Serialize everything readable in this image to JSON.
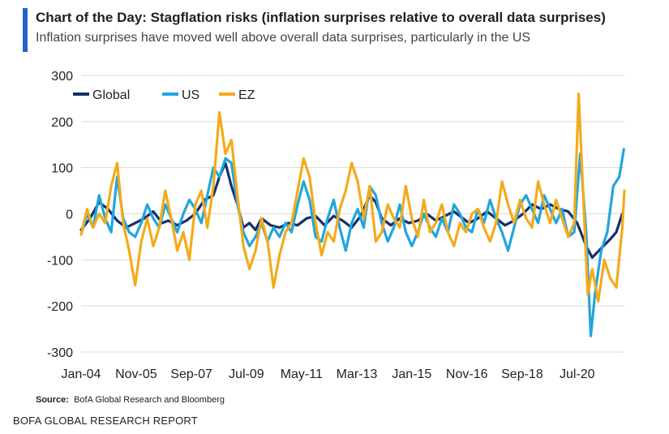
{
  "header": {
    "title": "Chart of the Day: Stagflation risks (inflation surprises relative to overall data surprises)",
    "subtitle": "Inflation surprises have moved well above overall data surprises, particularly in the US"
  },
  "footer": {
    "source_label": "Source:",
    "source_text": "BofA Global Research and Bloomberg",
    "report_label": "BOFA GLOBAL RESEARCH REPORT"
  },
  "colors": {
    "accent": "#2563c8",
    "global": "#14306e",
    "us": "#21a6dc",
    "ez": "#f3ab1b",
    "grid": "#d9d9d9"
  },
  "chart_data": {
    "type": "line",
    "title": "Chart of the Day: Stagflation risks (inflation surprises relative to overall data surprises)",
    "xlabel": "",
    "ylabel": "",
    "ylim": [
      -300,
      300
    ],
    "yticks": [
      300,
      200,
      100,
      0,
      -100,
      -200,
      -300
    ],
    "xlim": [
      2004.0,
      2022.07
    ],
    "xticks": [
      {
        "label": "Jan-04",
        "x": 2004.0
      },
      {
        "label": "Nov-05",
        "x": 2005.83
      },
      {
        "label": "Sep-07",
        "x": 2007.67
      },
      {
        "label": "Jul-09",
        "x": 2009.5
      },
      {
        "label": "May-11",
        "x": 2011.33
      },
      {
        "label": "Mar-13",
        "x": 2013.17
      },
      {
        "label": "Jan-15",
        "x": 2015.0
      },
      {
        "label": "Nov-16",
        "x": 2016.83
      },
      {
        "label": "Sep-18",
        "x": 2018.67
      },
      {
        "label": "Jul-20",
        "x": 2020.5
      }
    ],
    "legend_position": "top-left",
    "grid": "horizontal",
    "series": [
      {
        "name": "Global",
        "color": "#14306e",
        "points": [
          [
            2004.0,
            -35
          ],
          [
            2004.3,
            -10
          ],
          [
            2004.6,
            25
          ],
          [
            2004.9,
            10
          ],
          [
            2005.2,
            -15
          ],
          [
            2005.5,
            -30
          ],
          [
            2005.8,
            -20
          ],
          [
            2006.1,
            -10
          ],
          [
            2006.4,
            5
          ],
          [
            2006.7,
            -20
          ],
          [
            2006.9,
            -15
          ],
          [
            2007.2,
            -25
          ],
          [
            2007.5,
            -15
          ],
          [
            2007.8,
            0
          ],
          [
            2008.1,
            30
          ],
          [
            2008.4,
            40
          ],
          [
            2008.6,
            80
          ],
          [
            2008.8,
            110
          ],
          [
            2009.0,
            60
          ],
          [
            2009.2,
            20
          ],
          [
            2009.4,
            -30
          ],
          [
            2009.6,
            -20
          ],
          [
            2009.8,
            -35
          ],
          [
            2010.0,
            -10
          ],
          [
            2010.3,
            -25
          ],
          [
            2010.6,
            -30
          ],
          [
            2010.9,
            -20
          ],
          [
            2011.2,
            -25
          ],
          [
            2011.5,
            -10
          ],
          [
            2011.8,
            -5
          ],
          [
            2012.1,
            -25
          ],
          [
            2012.4,
            -5
          ],
          [
            2012.7,
            -15
          ],
          [
            2013.0,
            -30
          ],
          [
            2013.3,
            -5
          ],
          [
            2013.6,
            40
          ],
          [
            2013.8,
            25
          ],
          [
            2014.0,
            -10
          ],
          [
            2014.3,
            -25
          ],
          [
            2014.6,
            -10
          ],
          [
            2014.9,
            -20
          ],
          [
            2015.2,
            -15
          ],
          [
            2015.5,
            0
          ],
          [
            2015.8,
            -15
          ],
          [
            2016.1,
            -5
          ],
          [
            2016.4,
            5
          ],
          [
            2016.7,
            -10
          ],
          [
            2016.9,
            -20
          ],
          [
            2017.2,
            -10
          ],
          [
            2017.5,
            5
          ],
          [
            2017.8,
            -10
          ],
          [
            2018.1,
            -25
          ],
          [
            2018.4,
            -15
          ],
          [
            2018.7,
            0
          ],
          [
            2019.0,
            20
          ],
          [
            2019.3,
            10
          ],
          [
            2019.6,
            20
          ],
          [
            2019.9,
            10
          ],
          [
            2020.2,
            5
          ],
          [
            2020.5,
            -20
          ],
          [
            2020.8,
            -70
          ],
          [
            2021.0,
            -95
          ],
          [
            2021.3,
            -75
          ],
          [
            2021.6,
            -55
          ],
          [
            2021.8,
            -40
          ],
          [
            2022.0,
            0
          ]
        ]
      },
      {
        "name": "US",
        "color": "#21a6dc",
        "points": [
          [
            2004.0,
            -45
          ],
          [
            2004.2,
            0
          ],
          [
            2004.4,
            -30
          ],
          [
            2004.6,
            40
          ],
          [
            2004.8,
            -10
          ],
          [
            2005.0,
            -40
          ],
          [
            2005.2,
            80
          ],
          [
            2005.4,
            -10
          ],
          [
            2005.6,
            -40
          ],
          [
            2005.8,
            -50
          ],
          [
            2006.0,
            -20
          ],
          [
            2006.2,
            20
          ],
          [
            2006.4,
            -10
          ],
          [
            2006.6,
            -30
          ],
          [
            2006.8,
            20
          ],
          [
            2007.0,
            -10
          ],
          [
            2007.2,
            -40
          ],
          [
            2007.4,
            0
          ],
          [
            2007.6,
            30
          ],
          [
            2007.8,
            10
          ],
          [
            2008.0,
            -20
          ],
          [
            2008.2,
            40
          ],
          [
            2008.4,
            100
          ],
          [
            2008.6,
            80
          ],
          [
            2008.8,
            120
          ],
          [
            2009.0,
            110
          ],
          [
            2009.2,
            20
          ],
          [
            2009.4,
            -40
          ],
          [
            2009.6,
            -70
          ],
          [
            2009.8,
            -50
          ],
          [
            2010.0,
            -20
          ],
          [
            2010.2,
            -60
          ],
          [
            2010.4,
            -30
          ],
          [
            2010.6,
            -50
          ],
          [
            2010.8,
            -20
          ],
          [
            2011.0,
            -40
          ],
          [
            2011.2,
            20
          ],
          [
            2011.4,
            70
          ],
          [
            2011.6,
            30
          ],
          [
            2011.8,
            -50
          ],
          [
            2012.0,
            -60
          ],
          [
            2012.2,
            -10
          ],
          [
            2012.4,
            30
          ],
          [
            2012.6,
            -30
          ],
          [
            2012.8,
            -80
          ],
          [
            2013.0,
            -20
          ],
          [
            2013.2,
            10
          ],
          [
            2013.4,
            -30
          ],
          [
            2013.6,
            60
          ],
          [
            2013.8,
            40
          ],
          [
            2014.0,
            -20
          ],
          [
            2014.2,
            -60
          ],
          [
            2014.4,
            -30
          ],
          [
            2014.6,
            20
          ],
          [
            2014.8,
            -40
          ],
          [
            2015.0,
            -70
          ],
          [
            2015.2,
            -40
          ],
          [
            2015.4,
            0
          ],
          [
            2015.6,
            -30
          ],
          [
            2015.8,
            -50
          ],
          [
            2016.0,
            -10
          ],
          [
            2016.2,
            -40
          ],
          [
            2016.4,
            20
          ],
          [
            2016.6,
            0
          ],
          [
            2016.8,
            -30
          ],
          [
            2017.0,
            -40
          ],
          [
            2017.2,
            10
          ],
          [
            2017.4,
            -20
          ],
          [
            2017.6,
            30
          ],
          [
            2017.8,
            -10
          ],
          [
            2018.0,
            -40
          ],
          [
            2018.2,
            -80
          ],
          [
            2018.4,
            -30
          ],
          [
            2018.6,
            20
          ],
          [
            2018.8,
            40
          ],
          [
            2019.0,
            10
          ],
          [
            2019.2,
            -20
          ],
          [
            2019.4,
            40
          ],
          [
            2019.6,
            10
          ],
          [
            2019.8,
            -20
          ],
          [
            2020.0,
            10
          ],
          [
            2020.2,
            -50
          ],
          [
            2020.4,
            -40
          ],
          [
            2020.6,
            130
          ],
          [
            2020.8,
            -40
          ],
          [
            2020.95,
            -265
          ],
          [
            2021.1,
            -170
          ],
          [
            2021.3,
            -80
          ],
          [
            2021.5,
            -40
          ],
          [
            2021.7,
            60
          ],
          [
            2021.9,
            80
          ],
          [
            2022.05,
            140
          ]
        ]
      },
      {
        "name": "EZ",
        "color": "#f3ab1b",
        "points": [
          [
            2004.0,
            -45
          ],
          [
            2004.2,
            10
          ],
          [
            2004.4,
            -30
          ],
          [
            2004.6,
            0
          ],
          [
            2004.8,
            -20
          ],
          [
            2005.0,
            60
          ],
          [
            2005.2,
            110
          ],
          [
            2005.4,
            -20
          ],
          [
            2005.6,
            -80
          ],
          [
            2005.8,
            -155
          ],
          [
            2006.0,
            -60
          ],
          [
            2006.2,
            -10
          ],
          [
            2006.4,
            -70
          ],
          [
            2006.6,
            -30
          ],
          [
            2006.8,
            50
          ],
          [
            2007.0,
            -10
          ],
          [
            2007.2,
            -80
          ],
          [
            2007.4,
            -40
          ],
          [
            2007.6,
            -100
          ],
          [
            2007.8,
            20
          ],
          [
            2008.0,
            50
          ],
          [
            2008.2,
            -30
          ],
          [
            2008.4,
            60
          ],
          [
            2008.6,
            220
          ],
          [
            2008.8,
            130
          ],
          [
            2009.0,
            160
          ],
          [
            2009.2,
            40
          ],
          [
            2009.4,
            -70
          ],
          [
            2009.6,
            -120
          ],
          [
            2009.8,
            -80
          ],
          [
            2010.0,
            -10
          ],
          [
            2010.2,
            -60
          ],
          [
            2010.4,
            -160
          ],
          [
            2010.6,
            -90
          ],
          [
            2010.8,
            -40
          ],
          [
            2011.0,
            -20
          ],
          [
            2011.2,
            50
          ],
          [
            2011.4,
            120
          ],
          [
            2011.6,
            80
          ],
          [
            2011.8,
            -20
          ],
          [
            2012.0,
            -90
          ],
          [
            2012.2,
            -40
          ],
          [
            2012.4,
            -60
          ],
          [
            2012.6,
            10
          ],
          [
            2012.8,
            50
          ],
          [
            2013.0,
            110
          ],
          [
            2013.2,
            70
          ],
          [
            2013.4,
            -10
          ],
          [
            2013.6,
            60
          ],
          [
            2013.8,
            -60
          ],
          [
            2014.0,
            -40
          ],
          [
            2014.2,
            20
          ],
          [
            2014.4,
            -10
          ],
          [
            2014.6,
            -30
          ],
          [
            2014.8,
            60
          ],
          [
            2015.0,
            -10
          ],
          [
            2015.2,
            -50
          ],
          [
            2015.4,
            30
          ],
          [
            2015.6,
            -40
          ],
          [
            2015.8,
            -20
          ],
          [
            2016.0,
            20
          ],
          [
            2016.2,
            -40
          ],
          [
            2016.4,
            -70
          ],
          [
            2016.6,
            -20
          ],
          [
            2016.8,
            -40
          ],
          [
            2017.0,
            0
          ],
          [
            2017.2,
            10
          ],
          [
            2017.4,
            -30
          ],
          [
            2017.6,
            -60
          ],
          [
            2017.8,
            -20
          ],
          [
            2018.0,
            70
          ],
          [
            2018.2,
            20
          ],
          [
            2018.4,
            -20
          ],
          [
            2018.6,
            30
          ],
          [
            2018.8,
            -10
          ],
          [
            2019.0,
            -30
          ],
          [
            2019.2,
            70
          ],
          [
            2019.4,
            20
          ],
          [
            2019.6,
            -20
          ],
          [
            2019.8,
            30
          ],
          [
            2020.0,
            -10
          ],
          [
            2020.2,
            -50
          ],
          [
            2020.4,
            -20
          ],
          [
            2020.55,
            260
          ],
          [
            2020.7,
            40
          ],
          [
            2020.85,
            -175
          ],
          [
            2021.0,
            -120
          ],
          [
            2021.2,
            -190
          ],
          [
            2021.4,
            -100
          ],
          [
            2021.6,
            -140
          ],
          [
            2021.8,
            -160
          ],
          [
            2022.0,
            -30
          ],
          [
            2022.07,
            50
          ]
        ]
      }
    ]
  }
}
